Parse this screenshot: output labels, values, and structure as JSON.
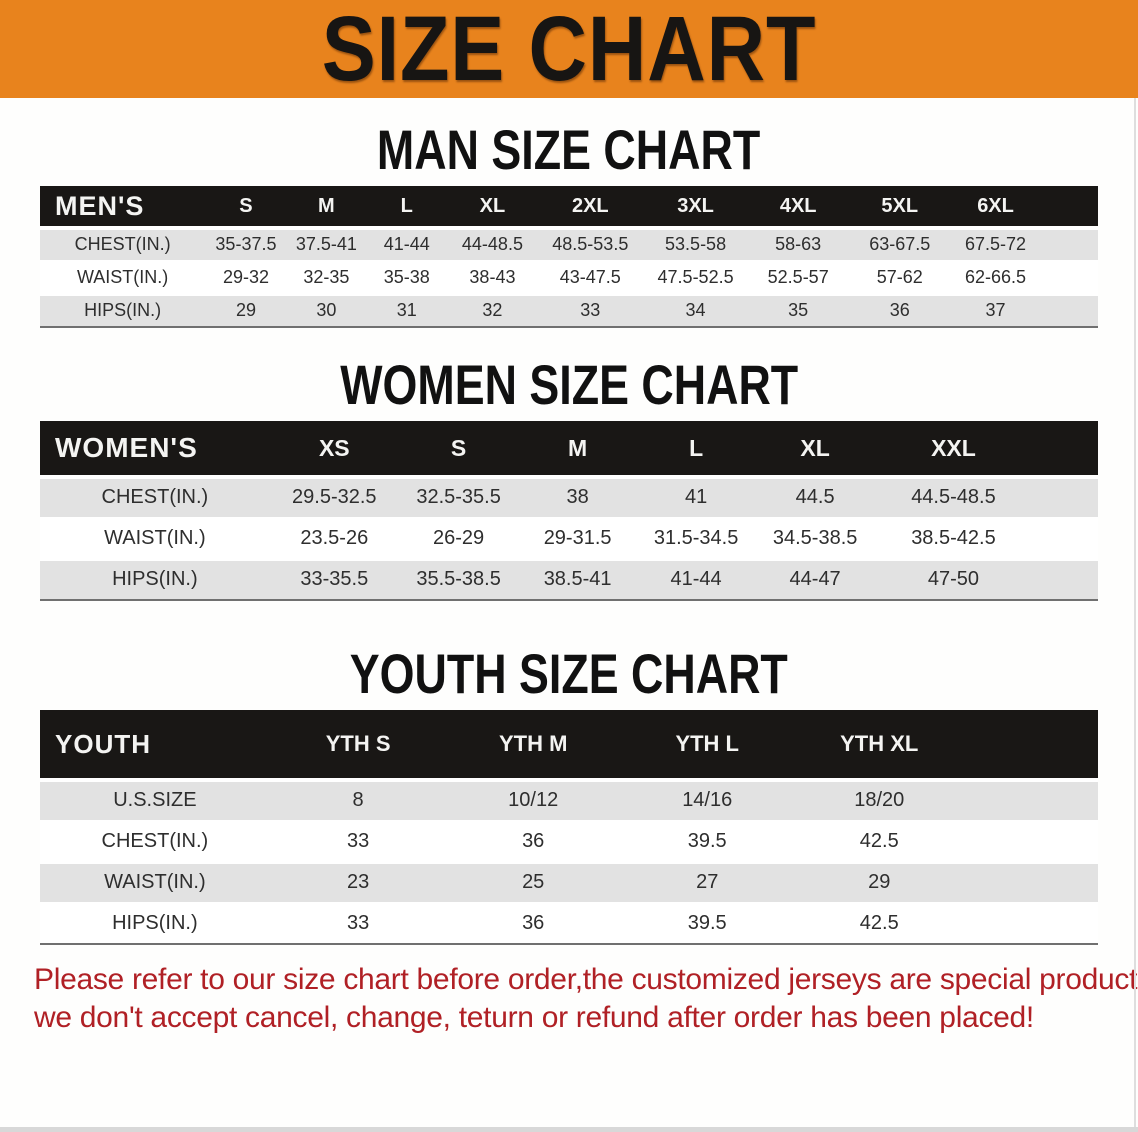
{
  "banner": {
    "title": "SIZE CHART",
    "bg_color": "#e8831d"
  },
  "colors": {
    "header_row_bg": "#191715",
    "stripe_row_bg": "#e2e2e2",
    "disclaimer_red": "#b02025"
  },
  "sections": [
    {
      "title": "MAN SIZE CHART",
      "table": {
        "header": [
          "MEN'S",
          "S",
          "M",
          "L",
          "XL",
          "2XL",
          "3XL",
          "4XL",
          "5XL",
          "6XL"
        ],
        "rows": [
          {
            "label": "CHEST(IN.)",
            "values": [
              "35-37.5",
              "37.5-41",
              "41-44",
              "44-48.5",
              "48.5-53.5",
              "53.5-58",
              "58-63",
              "63-67.5",
              "67.5-72"
            ]
          },
          {
            "label": "WAIST(IN.)",
            "values": [
              "29-32",
              "32-35",
              "35-38",
              "38-43",
              "43-47.5",
              "47.5-52.5",
              "52.5-57",
              "57-62",
              "62-66.5"
            ]
          },
          {
            "label": "HIPS(IN.)",
            "values": [
              "29",
              "30",
              "31",
              "32",
              "33",
              "34",
              "35",
              "36",
              "37"
            ]
          }
        ]
      }
    },
    {
      "title": "WOMEN SIZE CHART",
      "table": {
        "header": [
          "WOMEN'S",
          "XS",
          "S",
          "M",
          "L",
          "XL",
          "XXL"
        ],
        "rows": [
          {
            "label": "CHEST(IN.)",
            "values": [
              "29.5-32.5",
              "32.5-35.5",
              "38",
              "41",
              "44.5",
              "44.5-48.5"
            ]
          },
          {
            "label": "WAIST(IN.)",
            "values": [
              "23.5-26",
              "26-29",
              "29-31.5",
              "31.5-34.5",
              "34.5-38.5",
              "38.5-42.5"
            ]
          },
          {
            "label": "HIPS(IN.)",
            "values": [
              "33-35.5",
              "35.5-38.5",
              "38.5-41",
              "41-44",
              "44-47",
              "47-50"
            ]
          }
        ]
      }
    },
    {
      "title": "YOUTH SIZE CHART",
      "table": {
        "header": [
          "YOUTH",
          "YTH S",
          "YTH M",
          "YTH L",
          "YTH XL"
        ],
        "rows": [
          {
            "label": "U.S.SIZE",
            "values": [
              "8",
              "10/12",
              "14/16",
              "18/20"
            ]
          },
          {
            "label": "CHEST(IN.)",
            "values": [
              "33",
              "36",
              "39.5",
              "42.5"
            ]
          },
          {
            "label": "WAIST(IN.)",
            "values": [
              "23",
              "25",
              "27",
              "29"
            ]
          },
          {
            "label": "HIPS(IN.)",
            "values": [
              "33",
              "36",
              "39.5",
              "42.5"
            ]
          }
        ]
      }
    }
  ],
  "disclaimer": {
    "line1": "Please refer to our size chart before order,the customized jerseys are special products,",
    "line2": "we don't accept cancel, change, teturn or refund after order has been placed!"
  }
}
